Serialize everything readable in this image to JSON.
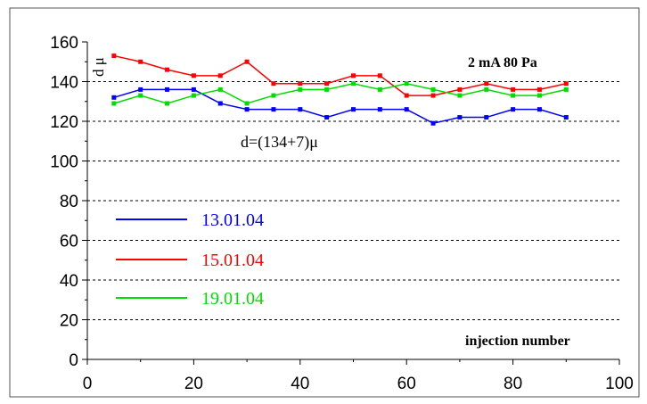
{
  "chart_data": {
    "type": "line",
    "title": "",
    "xlabel": "injection number",
    "ylabel": "d μ",
    "xlim": [
      0,
      100
    ],
    "ylim": [
      0,
      160
    ],
    "x_ticks": [
      0,
      20,
      40,
      60,
      80,
      100
    ],
    "y_ticks": [
      0,
      20,
      40,
      60,
      80,
      100,
      120,
      140,
      160
    ],
    "x_tick_labels": [
      "0",
      "20",
      "40",
      "60",
      "80",
      "100"
    ],
    "y_tick_labels": [
      "0",
      "20",
      "40",
      "60",
      "80",
      "100",
      "120",
      "140",
      "160"
    ],
    "grid": "horizontal dashed",
    "annotations": {
      "conditions": "2 mA   80 Pa",
      "mean": "d=(134+7)μ"
    },
    "legend_position": "left-lower",
    "series": [
      {
        "name": "13.01.04",
        "color": "#0000ff",
        "x": [
          5,
          10,
          15,
          20,
          25,
          30,
          35,
          40,
          45,
          50,
          55,
          60,
          65,
          70,
          75,
          80,
          85,
          90
        ],
        "values": [
          132,
          136,
          136,
          136,
          129,
          126,
          126,
          126,
          122,
          126,
          126,
          126,
          119,
          122,
          122,
          126,
          126,
          122
        ]
      },
      {
        "name": "15.01.04",
        "color": "#ff0000",
        "x": [
          5,
          10,
          15,
          20,
          25,
          30,
          35,
          40,
          45,
          50,
          55,
          60,
          65,
          70,
          75,
          80,
          85,
          90
        ],
        "values": [
          153,
          150,
          146,
          143,
          143,
          150,
          139,
          139,
          139,
          143,
          143,
          133,
          133,
          136,
          139,
          136,
          136,
          139
        ]
      },
      {
        "name": "19.01.04",
        "color": "#00dd00",
        "x": [
          5,
          10,
          15,
          20,
          25,
          30,
          35,
          40,
          45,
          50,
          55,
          60,
          65,
          70,
          75,
          80,
          85,
          90
        ],
        "values": [
          129,
          133,
          129,
          133,
          136,
          129,
          133,
          136,
          136,
          139,
          136,
          139,
          136,
          133,
          136,
          133,
          133,
          136
        ]
      }
    ]
  }
}
